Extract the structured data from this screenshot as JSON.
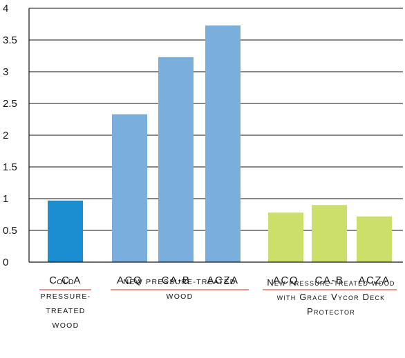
{
  "chart_data": {
    "type": "bar",
    "ylim": [
      0,
      4
    ],
    "yticks": [
      "0",
      "0.5",
      "1",
      "1.5",
      "2",
      "2.5",
      "3",
      "3.5",
      "4"
    ],
    "grid": true,
    "categories": [
      "C C A",
      "ACQ",
      "CA-B",
      "ACZA",
      "ACQ",
      "CA-B",
      "ACZA"
    ],
    "values": [
      0.97,
      2.33,
      3.23,
      3.73,
      0.78,
      0.9,
      0.72
    ],
    "groups": [
      {
        "label": "OLD PRESSURE-TREATED WOOD",
        "color": "#1b8ed2",
        "bars": [
          0
        ]
      },
      {
        "label": "NEW PRESSURE-TREATED WOOD",
        "color": "#7aaedd",
        "bars": [
          1,
          2,
          3
        ]
      },
      {
        "label": "New pressure-treated wood with Grace Vycor Deck Protector",
        "color": "#cbdf6a",
        "bars": [
          4,
          5,
          6
        ]
      }
    ],
    "group_underline_color": "#d9534f"
  }
}
